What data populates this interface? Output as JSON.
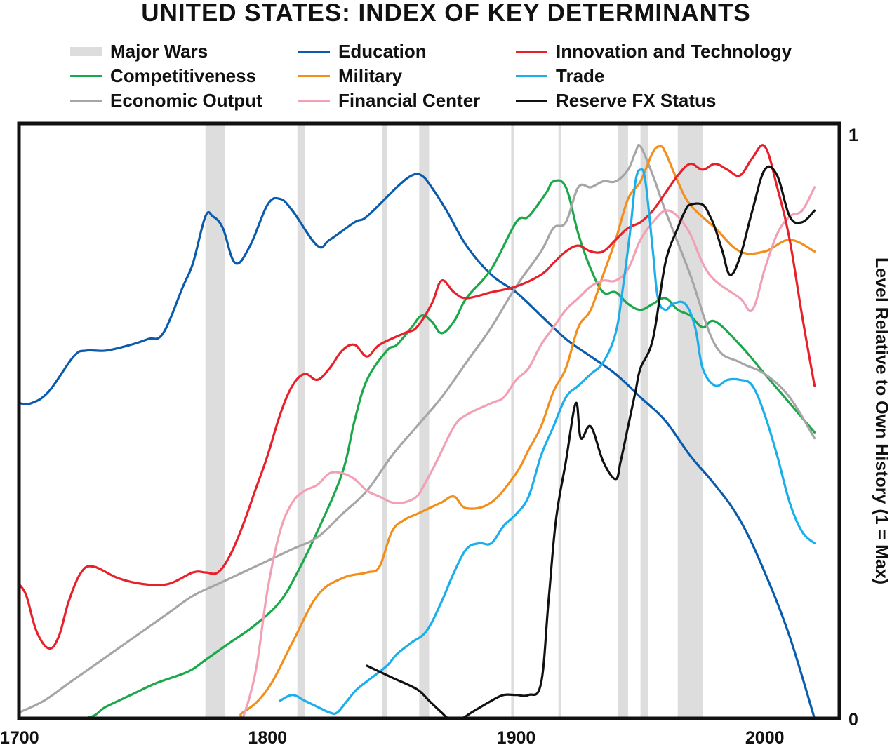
{
  "chart_data": {
    "type": "line",
    "title": "UNITED STATES: INDEX OF KEY DETERMINANTS",
    "xlabel": "",
    "ylabel": "Level Relative to Own History (1 = Max)",
    "xlim": [
      1700,
      2030
    ],
    "ylim": [
      0,
      1
    ],
    "x_ticks": [
      {
        "value": 1700,
        "label": "1700"
      },
      {
        "value": 1800,
        "label": "1800"
      },
      {
        "value": 1900,
        "label": "1900"
      },
      {
        "value": 2000,
        "label": "2000"
      }
    ],
    "y_ticks": [
      {
        "value": 0,
        "label": "0"
      },
      {
        "value": 1,
        "label": "1"
      }
    ],
    "legend_position": "top",
    "wars": {
      "name": "Major Wars",
      "color": "#dddddd",
      "periods": [
        [
          1775,
          1783
        ],
        [
          1812,
          1815
        ],
        [
          1846,
          1848
        ],
        [
          1861,
          1865
        ],
        [
          1898,
          1899
        ],
        [
          1917,
          1918
        ],
        [
          1941,
          1945
        ],
        [
          1950,
          1953
        ],
        [
          1965,
          1975
        ]
      ]
    },
    "series": [
      {
        "name": "Education",
        "color": "#0b5bad",
        "x": [
          1700,
          1705,
          1712,
          1722,
          1727,
          1735,
          1745,
          1752,
          1758,
          1766,
          1770,
          1775,
          1778,
          1782,
          1787,
          1793,
          1800,
          1805,
          1810,
          1820,
          1825,
          1835,
          1840,
          1852,
          1858,
          1862,
          1866,
          1872,
          1880,
          1890,
          1900,
          1910,
          1920,
          1930,
          1940,
          1950,
          1960,
          1970,
          1980,
          1990,
          2000,
          2010,
          2020
        ],
        "y": [
          0.54,
          0.54,
          0.56,
          0.62,
          0.63,
          0.63,
          0.64,
          0.65,
          0.66,
          0.74,
          0.78,
          0.86,
          0.86,
          0.84,
          0.78,
          0.81,
          0.88,
          0.89,
          0.87,
          0.81,
          0.82,
          0.85,
          0.86,
          0.91,
          0.93,
          0.93,
          0.91,
          0.87,
          0.81,
          0.76,
          0.73,
          0.69,
          0.65,
          0.62,
          0.59,
          0.55,
          0.51,
          0.45,
          0.4,
          0.34,
          0.25,
          0.14,
          0.0
        ]
      },
      {
        "name": "Competitiveness",
        "color": "#1ba84b",
        "x": [
          1700,
          1726,
          1735,
          1745,
          1755,
          1768,
          1775,
          1785,
          1795,
          1805,
          1812,
          1820,
          1830,
          1835,
          1840,
          1848,
          1852,
          1858,
          1862,
          1866,
          1870,
          1875,
          1880,
          1890,
          1900,
          1905,
          1912,
          1915,
          1920,
          1925,
          1930,
          1935,
          1940,
          1945,
          1950,
          1955,
          1960,
          1965,
          1970,
          1975,
          1980,
          1990,
          2000,
          2010,
          2020
        ],
        "y": [
          0.0,
          0.0,
          0.02,
          0.04,
          0.06,
          0.08,
          0.1,
          0.13,
          0.16,
          0.2,
          0.25,
          0.32,
          0.42,
          0.51,
          0.58,
          0.63,
          0.64,
          0.67,
          0.69,
          0.68,
          0.66,
          0.68,
          0.72,
          0.77,
          0.85,
          0.86,
          0.9,
          0.92,
          0.91,
          0.83,
          0.77,
          0.73,
          0.73,
          0.71,
          0.7,
          0.71,
          0.72,
          0.7,
          0.69,
          0.67,
          0.68,
          0.64,
          0.59,
          0.54,
          0.49
        ]
      },
      {
        "name": "Economic Output",
        "color": "#a6a6a6",
        "x": [
          1700,
          1710,
          1720,
          1730,
          1740,
          1750,
          1760,
          1770,
          1780,
          1790,
          1800,
          1810,
          1820,
          1830,
          1840,
          1850,
          1860,
          1870,
          1880,
          1890,
          1900,
          1910,
          1915,
          1920,
          1925,
          1930,
          1935,
          1940,
          1945,
          1948,
          1950,
          1955,
          1960,
          1970,
          1980,
          1990,
          2000,
          2010,
          2020
        ],
        "y": [
          0.01,
          0.03,
          0.06,
          0.09,
          0.12,
          0.15,
          0.18,
          0.21,
          0.23,
          0.25,
          0.27,
          0.29,
          0.31,
          0.35,
          0.39,
          0.45,
          0.5,
          0.55,
          0.61,
          0.67,
          0.74,
          0.8,
          0.84,
          0.85,
          0.91,
          0.91,
          0.92,
          0.92,
          0.94,
          0.97,
          0.98,
          0.93,
          0.87,
          0.76,
          0.64,
          0.61,
          0.59,
          0.55,
          0.48
        ]
      },
      {
        "name": "Military",
        "color": "#f28e1c",
        "x": [
          1700,
          1780,
          1790,
          1800,
          1810,
          1820,
          1830,
          1840,
          1845,
          1850,
          1855,
          1860,
          1865,
          1870,
          1875,
          1880,
          1890,
          1900,
          1905,
          1910,
          1915,
          1920,
          1925,
          1930,
          1935,
          1940,
          1945,
          1950,
          1955,
          1958,
          1960,
          1965,
          1970,
          1980,
          1990,
          2000,
          2010,
          2020
        ],
        "y": [
          0.0,
          0.0,
          0.01,
          0.05,
          0.13,
          0.21,
          0.24,
          0.25,
          0.26,
          0.32,
          0.34,
          0.35,
          0.36,
          0.37,
          0.38,
          0.36,
          0.37,
          0.42,
          0.46,
          0.5,
          0.56,
          0.6,
          0.67,
          0.7,
          0.76,
          0.82,
          0.89,
          0.92,
          0.97,
          0.98,
          0.97,
          0.92,
          0.88,
          0.84,
          0.8,
          0.8,
          0.82,
          0.8
        ]
      },
      {
        "name": "Financial Center",
        "color": "#f2a1b5",
        "x": [
          1790,
          1793,
          1796,
          1800,
          1805,
          1810,
          1815,
          1820,
          1825,
          1830,
          1835,
          1840,
          1845,
          1850,
          1855,
          1860,
          1863,
          1868,
          1875,
          1880,
          1890,
          1895,
          1900,
          1905,
          1910,
          1915,
          1920,
          1925,
          1930,
          1935,
          1940,
          1945,
          1950,
          1955,
          1960,
          1965,
          1970,
          1975,
          1980,
          1990,
          1995,
          2000,
          2005,
          2010,
          2015,
          2020
        ],
        "y": [
          0.0,
          0.04,
          0.1,
          0.22,
          0.32,
          0.37,
          0.39,
          0.4,
          0.42,
          0.42,
          0.41,
          0.39,
          0.38,
          0.37,
          0.37,
          0.38,
          0.4,
          0.44,
          0.5,
          0.52,
          0.54,
          0.55,
          0.58,
          0.6,
          0.64,
          0.67,
          0.7,
          0.72,
          0.74,
          0.75,
          0.75,
          0.77,
          0.82,
          0.85,
          0.87,
          0.86,
          0.83,
          0.78,
          0.75,
          0.72,
          0.7,
          0.77,
          0.83,
          0.86,
          0.87,
          0.91
        ]
      },
      {
        "name": "Innovation and Technology",
        "color": "#e8202a",
        "x": [
          1700,
          1703,
          1707,
          1712,
          1716,
          1720,
          1725,
          1730,
          1740,
          1750,
          1760,
          1770,
          1775,
          1780,
          1785,
          1790,
          1795,
          1800,
          1805,
          1810,
          1815,
          1820,
          1825,
          1830,
          1835,
          1840,
          1845,
          1855,
          1860,
          1866,
          1870,
          1875,
          1880,
          1890,
          1900,
          1910,
          1915,
          1920,
          1925,
          1930,
          1935,
          1940,
          1945,
          1950,
          1955,
          1960,
          1965,
          1970,
          1975,
          1980,
          1985,
          1990,
          1995,
          2000,
          2005,
          2010,
          2015,
          2020
        ],
        "y": [
          0.23,
          0.21,
          0.15,
          0.12,
          0.14,
          0.2,
          0.25,
          0.26,
          0.24,
          0.23,
          0.23,
          0.25,
          0.25,
          0.25,
          0.28,
          0.33,
          0.39,
          0.45,
          0.52,
          0.57,
          0.59,
          0.58,
          0.6,
          0.63,
          0.64,
          0.62,
          0.64,
          0.66,
          0.67,
          0.71,
          0.75,
          0.73,
          0.72,
          0.73,
          0.74,
          0.76,
          0.78,
          0.8,
          0.81,
          0.8,
          0.8,
          0.82,
          0.84,
          0.85,
          0.87,
          0.9,
          0.93,
          0.95,
          0.94,
          0.95,
          0.94,
          0.93,
          0.96,
          0.98,
          0.91,
          0.82,
          0.69,
          0.57
        ]
      },
      {
        "name": "Trade",
        "color": "#1aaeea",
        "x": [
          1805,
          1810,
          1815,
          1820,
          1825,
          1828,
          1832,
          1836,
          1842,
          1848,
          1852,
          1858,
          1864,
          1870,
          1875,
          1880,
          1885,
          1890,
          1895,
          1900,
          1905,
          1910,
          1915,
          1920,
          1925,
          1930,
          1935,
          1940,
          1943,
          1946,
          1948,
          1950,
          1952,
          1955,
          1957,
          1960,
          1963,
          1968,
          1972,
          1975,
          1980,
          1985,
          1990,
          1995,
          2000,
          2005,
          2010,
          2015,
          2020
        ],
        "y": [
          0.03,
          0.04,
          0.03,
          0.02,
          0.01,
          0.01,
          0.03,
          0.05,
          0.07,
          0.09,
          0.11,
          0.13,
          0.15,
          0.2,
          0.25,
          0.29,
          0.3,
          0.3,
          0.33,
          0.35,
          0.38,
          0.45,
          0.5,
          0.55,
          0.57,
          0.59,
          0.61,
          0.66,
          0.74,
          0.84,
          0.92,
          0.94,
          0.92,
          0.8,
          0.72,
          0.7,
          0.71,
          0.71,
          0.67,
          0.6,
          0.57,
          0.58,
          0.58,
          0.57,
          0.52,
          0.45,
          0.37,
          0.32,
          0.3
        ]
      },
      {
        "name": "Reserve FX Status",
        "color": "#111111",
        "x": [
          1840,
          1850,
          1860,
          1865,
          1870,
          1873,
          1878,
          1882,
          1890,
          1895,
          1900,
          1905,
          1910,
          1913,
          1916,
          1920,
          1924,
          1926,
          1930,
          1935,
          1940,
          1942,
          1945,
          1948,
          1950,
          1955,
          1960,
          1965,
          1968,
          1970,
          1975,
          1978,
          1980,
          1983,
          1986,
          1990,
          1995,
          2000,
          2005,
          2010,
          2015,
          2020
        ],
        "y": [
          0.09,
          0.07,
          0.05,
          0.03,
          0.01,
          0.0,
          0.0,
          0.01,
          0.03,
          0.04,
          0.04,
          0.04,
          0.06,
          0.2,
          0.34,
          0.44,
          0.54,
          0.48,
          0.5,
          0.44,
          0.41,
          0.44,
          0.5,
          0.56,
          0.6,
          0.65,
          0.78,
          0.84,
          0.87,
          0.88,
          0.88,
          0.86,
          0.84,
          0.8,
          0.76,
          0.79,
          0.87,
          0.94,
          0.93,
          0.86,
          0.85,
          0.87
        ]
      }
    ]
  }
}
